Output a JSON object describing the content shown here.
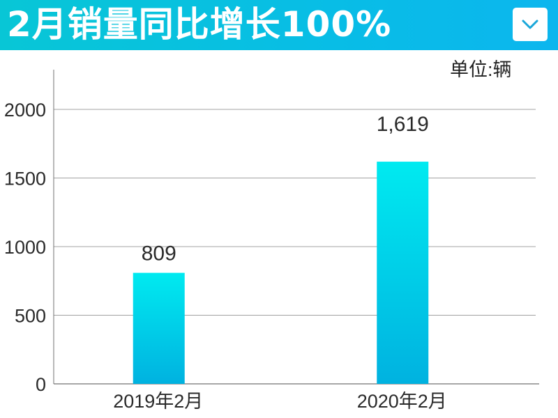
{
  "header": {
    "title": "2月销量同比增长100%",
    "dropdown_icon": "chevron-down-icon"
  },
  "unit_label": "单位:辆",
  "colors": {
    "header_start": "#08c6d6",
    "header_end": "#0cb6ee",
    "bar_top": "#00eaf0",
    "bar_bottom": "#00b2e0",
    "grid": "#a0a0a0",
    "axis": "#707070",
    "chevron": "#1aa7d9"
  },
  "chart_data": {
    "type": "bar",
    "title": "2月销量同比增长100%",
    "categories": [
      "2019年2月",
      "2020年2月"
    ],
    "values": [
      809,
      1619
    ],
    "value_labels": [
      "809",
      "1,619"
    ],
    "ylim": [
      0,
      2000
    ],
    "yticks": [
      0,
      500,
      1000,
      1500,
      2000
    ],
    "ylabel": "单位:辆",
    "xlabel": "",
    "grid": true,
    "legend": "none"
  }
}
